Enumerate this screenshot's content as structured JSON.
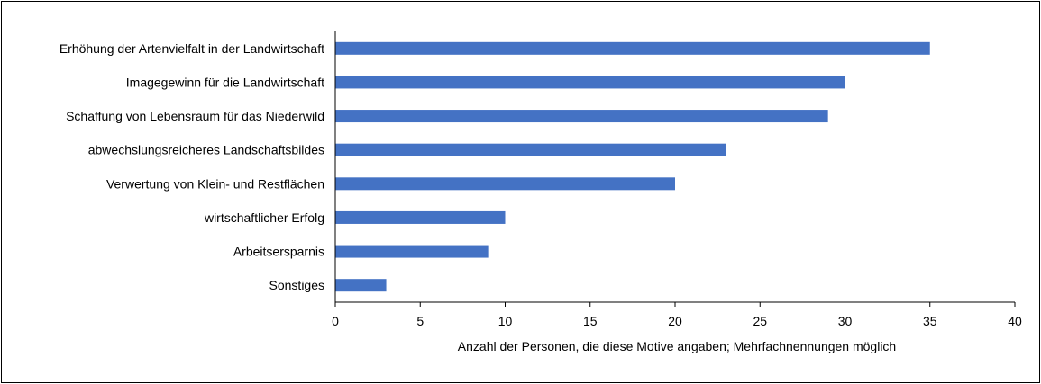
{
  "chart_data": {
    "type": "bar",
    "orientation": "horizontal",
    "categories": [
      "Erhöhung der Artenvielfalt in der Landwirtschaft",
      "Imagegewinn für die Landwirtschaft",
      "Schaffung von Lebensraum für das Niederwild",
      "abwechslungsreicheres Landschaftsbildes",
      "Verwertung von Klein- und Restflächen",
      "wirtschaftlicher Erfolg",
      "Arbeitsersparnis",
      "Sonstiges"
    ],
    "values": [
      35,
      30,
      29,
      23,
      20,
      10,
      9,
      3
    ],
    "xlabel": "Anzahl der Personen, die diese Motive angaben; Mehrfachnennungen möglich",
    "ylabel": "",
    "xlim": [
      0,
      40
    ],
    "xticks": [
      "0",
      "5",
      "10",
      "15",
      "20",
      "25",
      "30",
      "35",
      "40"
    ],
    "grid": false,
    "legend": "none",
    "bar_color": "#4472C4"
  }
}
